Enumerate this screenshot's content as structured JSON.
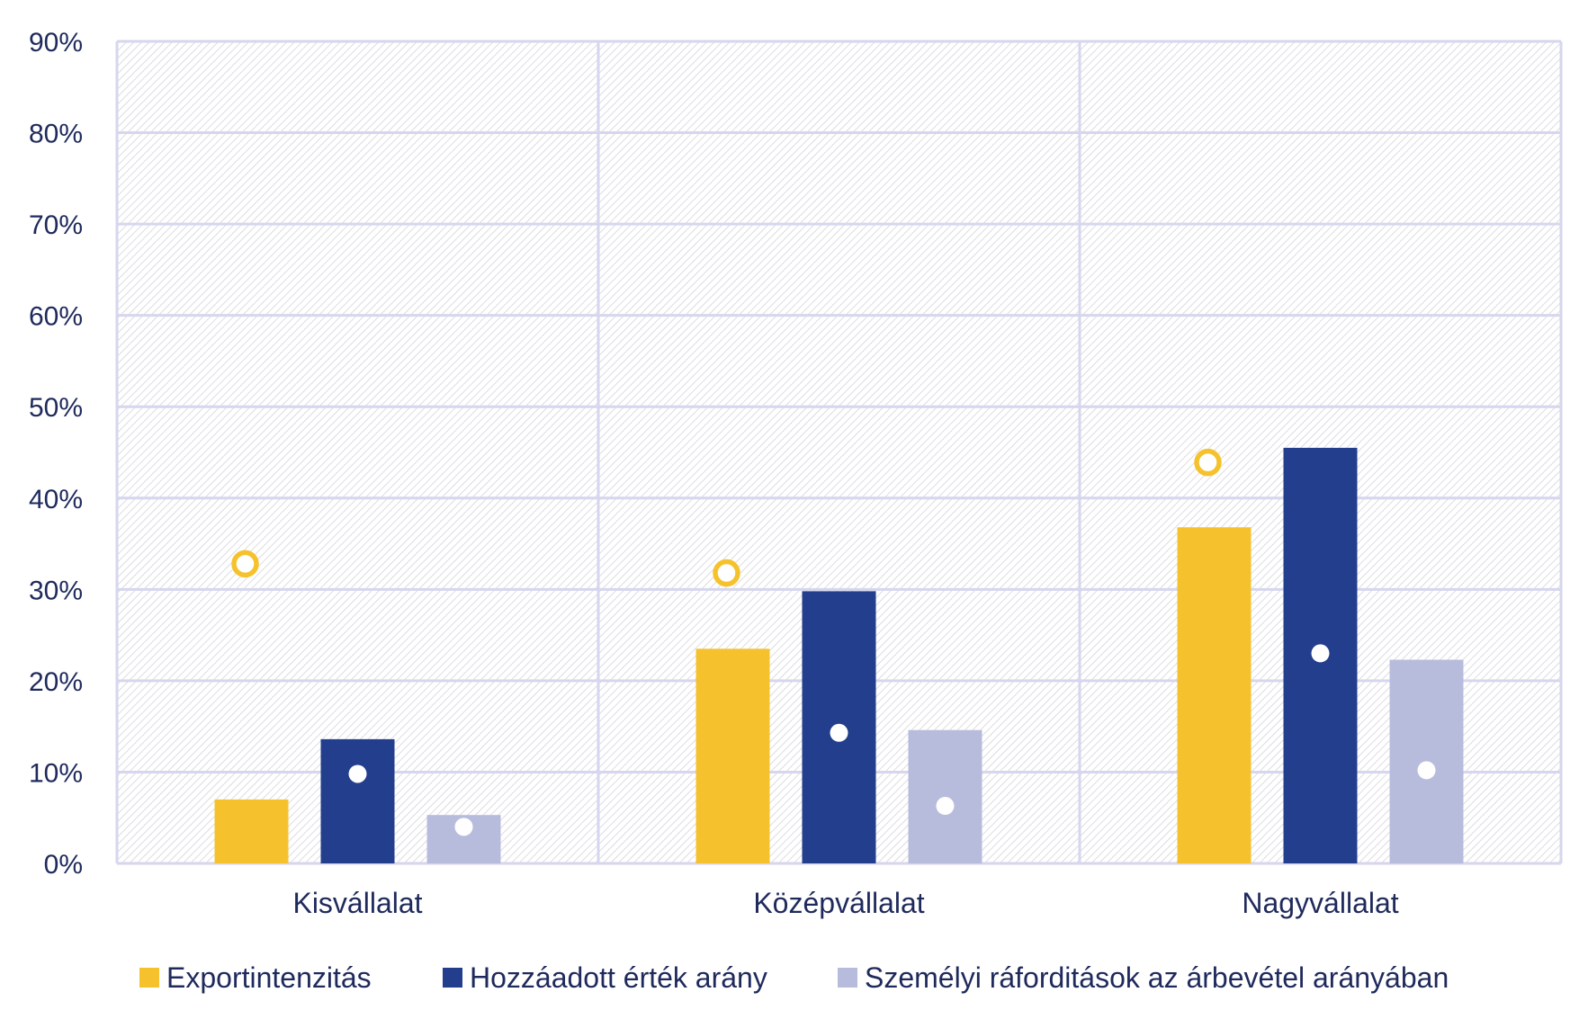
{
  "chart_data": {
    "type": "bar",
    "title": "",
    "xlabel": "",
    "ylabel": "",
    "ylim": [
      0,
      90
    ],
    "ytick_step": 10,
    "ytick_suffix": "%",
    "grid": true,
    "legend_position": "bottom",
    "categories": [
      "Kisvállalat",
      "Középvállalat",
      "Nagyvállalat"
    ],
    "series": [
      {
        "name": "Exportintenzitás",
        "color": "#f5c22e",
        "values": [
          7.0,
          23.5,
          36.8
        ]
      },
      {
        "name": "Hozzáadott érték arány",
        "color": "#233e8c",
        "values": [
          13.6,
          29.8,
          45.5
        ]
      },
      {
        "name": "Személyi ráforditások az árbevétel arányában",
        "color": "#b8bcdc",
        "values": [
          5.3,
          14.6,
          22.3
        ]
      }
    ],
    "markers": [
      {
        "series": "Exportintenzitás",
        "style": "hollow-circle",
        "color": "#f5c22e",
        "values": [
          32.8,
          31.8,
          43.9
        ]
      },
      {
        "series": "Hozzáadott érték arány",
        "style": "filled-circle",
        "color": "#ffffff",
        "values": [
          9.8,
          14.3,
          23.0
        ]
      },
      {
        "series": "Személyi ráforditások az árbevétel arányában",
        "style": "filled-circle",
        "color": "#ffffff",
        "values": [
          4.0,
          6.3,
          10.2
        ]
      }
    ]
  }
}
